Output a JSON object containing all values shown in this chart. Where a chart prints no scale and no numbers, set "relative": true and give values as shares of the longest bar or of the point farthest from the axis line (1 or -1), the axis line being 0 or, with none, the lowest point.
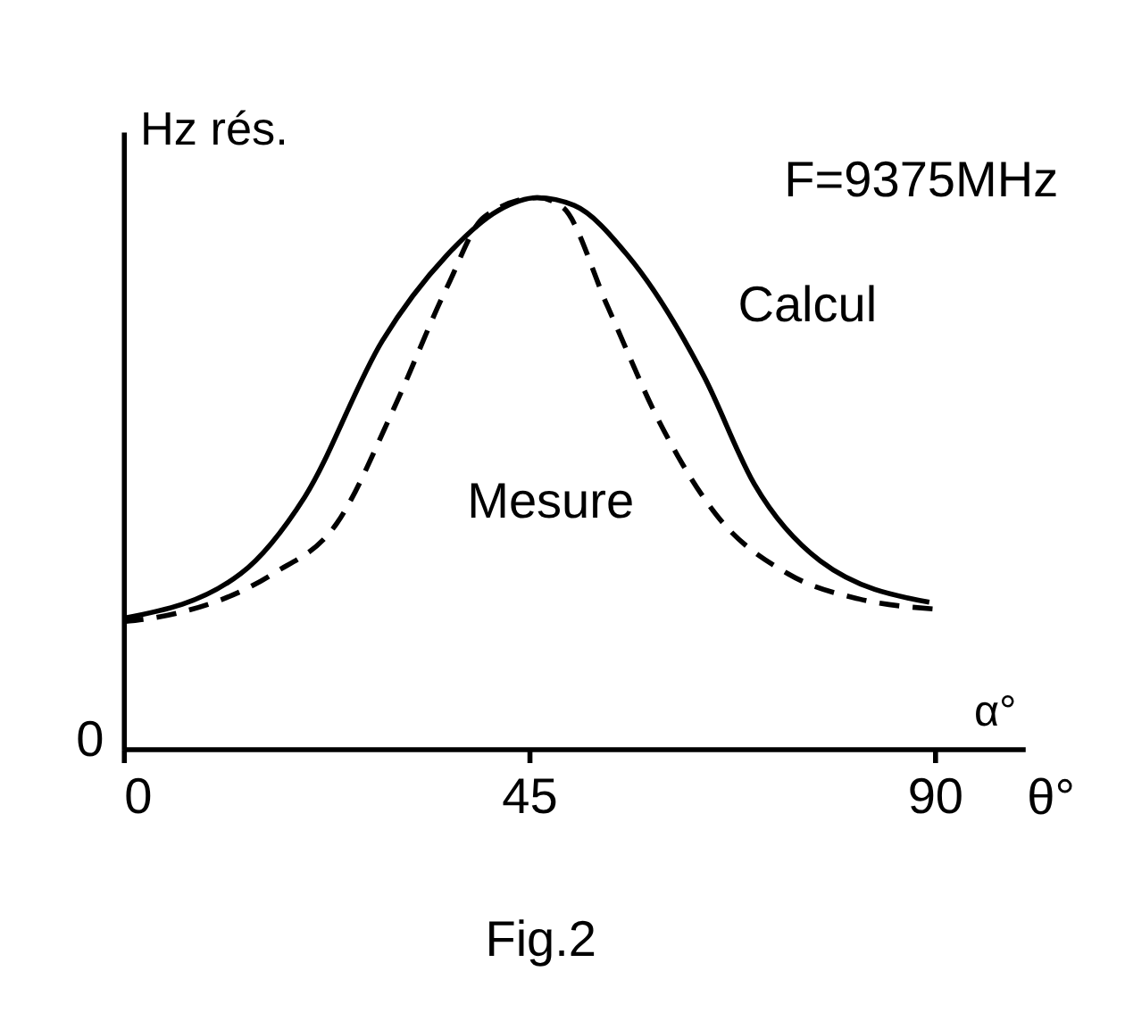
{
  "chart_data": {
    "type": "line",
    "relative": true,
    "ylabel": "Hz rés.",
    "xlabel": "α°",
    "annotations": [
      "F=9375MHz",
      "0",
      "θ°",
      "Fig.2"
    ],
    "xlim": [
      0,
      100
    ],
    "xticks": [
      0,
      45,
      90
    ],
    "grid": false,
    "legend": false,
    "series": [
      {
        "name": "Calcul",
        "color": "#000000",
        "line_style": "solid",
        "x": [
          0,
          13,
          20.1,
          28.7,
          35.9,
          41.6,
          45.9,
          50,
          55.9,
          64.4,
          70,
          77.3,
          89.4
        ],
        "values": [
          0.237,
          0.318,
          0.457,
          0.74,
          0.896,
          0.977,
          1,
          0.986,
          0.896,
          0.676,
          0.48,
          0.341,
          0.266
        ]
      },
      {
        "name": "Mesure",
        "color": "#000000",
        "line_style": "dashed",
        "x": [
          0,
          5.9,
          16.6,
          23.7,
          30,
          35.9,
          40,
          45.9,
          48.7,
          53.7,
          59.4,
          65.9,
          73.7,
          81.6,
          89.8
        ],
        "values": [
          0.231,
          0.246,
          0.318,
          0.41,
          0.618,
          0.838,
          0.965,
          1,
          0.983,
          0.803,
          0.595,
          0.422,
          0.318,
          0.272,
          0.254
        ]
      }
    ]
  }
}
